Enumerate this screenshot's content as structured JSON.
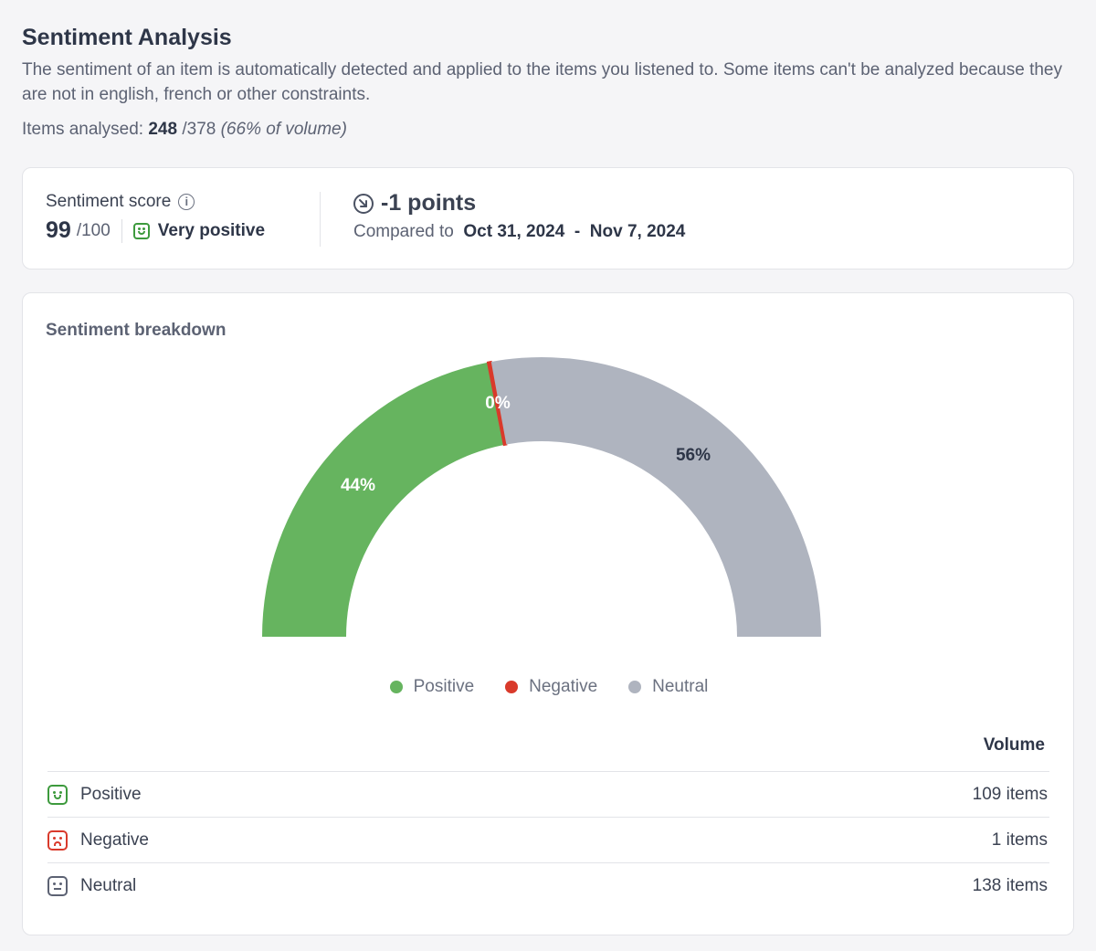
{
  "header": {
    "title": "Sentiment Analysis",
    "description": "The sentiment of an item is automatically detected and applied to the items you listened to. Some items can't be analyzed because they are not in english, french or other constraints.",
    "analysed_label": "Items analysed:",
    "analysed_count": "248",
    "analysed_total": "/378",
    "analysed_pct": "(66% of volume)"
  },
  "score_card": {
    "label": "Sentiment score",
    "info_icon": "i",
    "score": "99",
    "max": "/100",
    "sentiment": "Very positive",
    "points": "-1 points",
    "compared_label": "Compared to",
    "date_from": "Oct 31, 2024",
    "date_sep": "-",
    "date_to": "Nov 7, 2024"
  },
  "breakdown": {
    "title": "Sentiment breakdown",
    "table_header": "Volume",
    "rows": [
      {
        "label": "Positive",
        "volume": "109 items"
      },
      {
        "label": "Negative",
        "volume": "1 items"
      },
      {
        "label": "Neutral",
        "volume": "138 items"
      }
    ]
  },
  "chart_data": {
    "type": "pie",
    "layout": "half-donut",
    "categories": [
      "Positive",
      "Negative",
      "Neutral"
    ],
    "values": [
      44,
      0.4,
      56
    ],
    "labels": [
      "44%",
      "0%",
      "56%"
    ],
    "colors": [
      "#66b45f",
      "#d93a2b",
      "#afb4bf"
    ],
    "legend": "bottom-center"
  }
}
